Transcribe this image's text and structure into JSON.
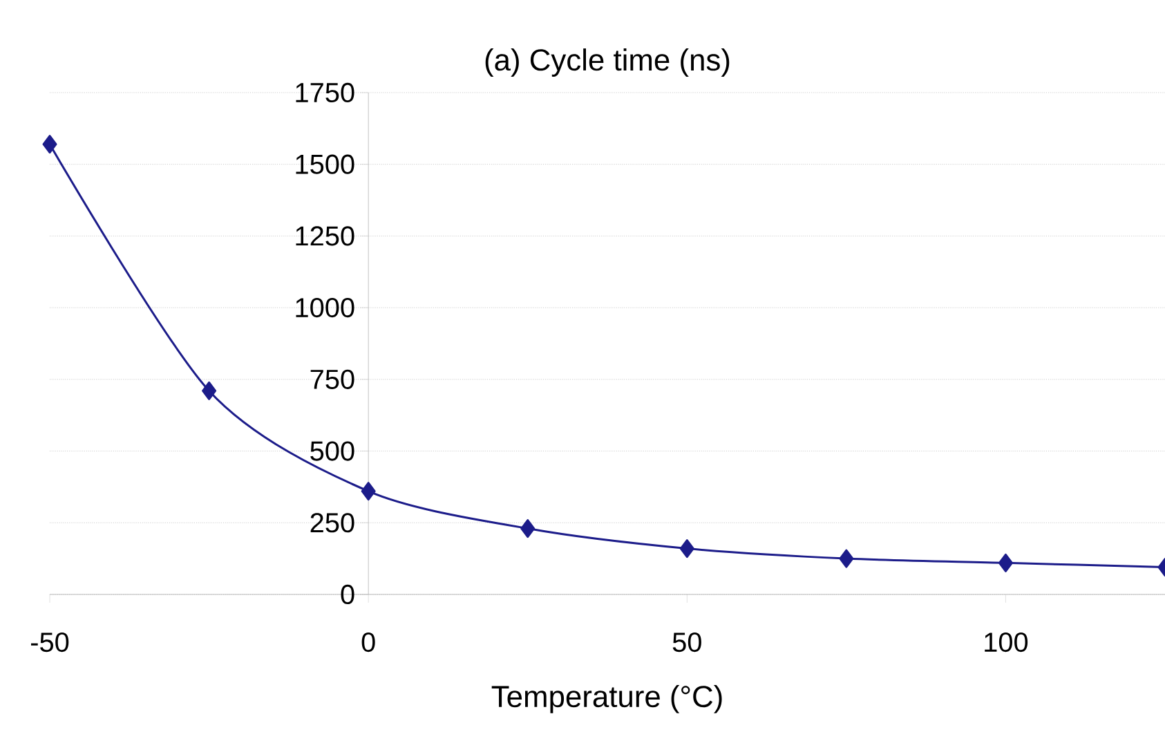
{
  "chart_data": {
    "type": "line",
    "title": "(a) Cycle time (ns)",
    "xlabel": "Temperature (°C)",
    "x": [
      -50,
      -25,
      0,
      25,
      50,
      75,
      100,
      125
    ],
    "series": [
      {
        "color": "#1c1c8a",
        "values": [
          1570,
          710,
          360,
          230,
          160,
          125,
          110,
          95
        ]
      }
    ],
    "xlim": [
      -50,
      125
    ],
    "xticks": [
      -50,
      0,
      50,
      100
    ],
    "ylim": [
      0,
      1750
    ],
    "yticks": [
      0,
      250,
      500,
      750,
      1000,
      1250,
      1500,
      1750
    ],
    "grid": "y",
    "marker": "diamond",
    "line_style": "solid"
  }
}
